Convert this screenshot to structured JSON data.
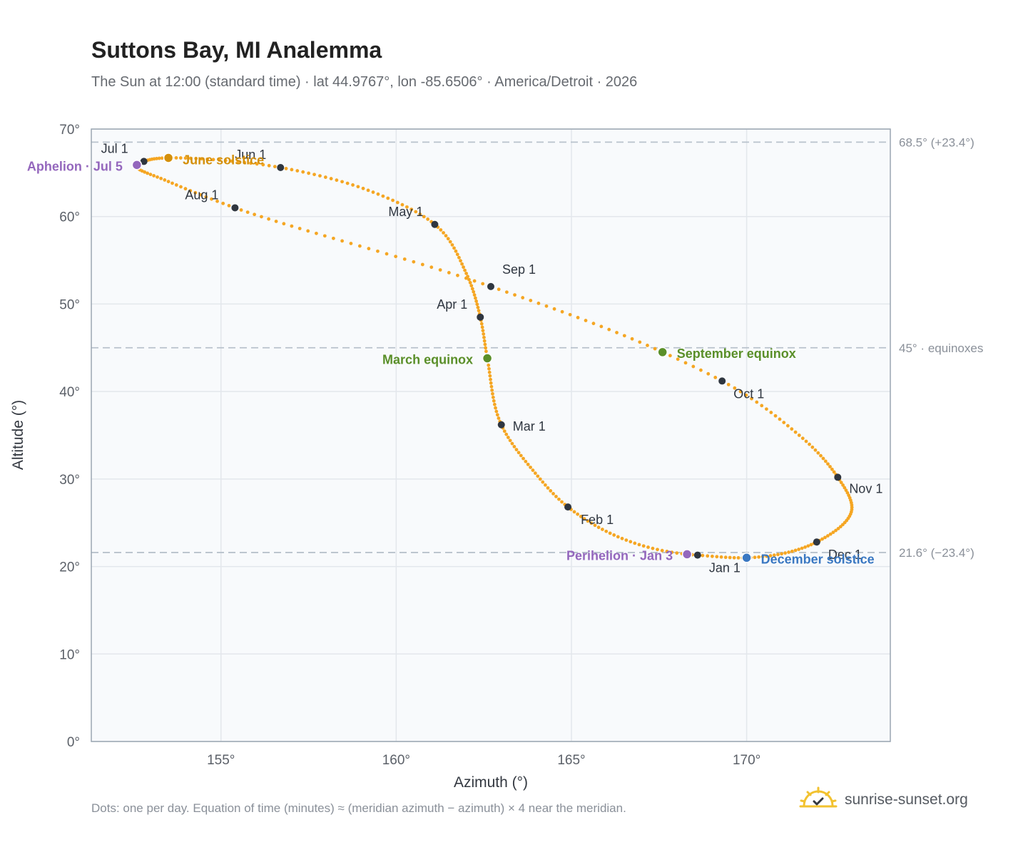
{
  "header": {
    "title": "Suttons Bay, MI Analemma",
    "subtitle": "The Sun at 12:00 (standard time) · lat 44.9767°, lon -85.6506° · America/Detroit · 2026"
  },
  "footer": {
    "note": "Dots: one per day. Equation of time (minutes) ≈ (meridian azimuth − azimuth) × 4 near the meridian.",
    "brand": "sunrise-sunset.org",
    "brand_icon": "sun-logo-icon"
  },
  "colors": {
    "path": "#f5a623",
    "month_marker": "#2f3640",
    "equinox": "#5a8f29",
    "june_solstice": "#d4900c",
    "december_solstice": "#3a78c2",
    "apsis": "#9467bd",
    "plot_bg": "#f8fafc",
    "grid": "#e3e7ec",
    "ref_line": "#b8c2cc"
  },
  "chart_data": {
    "type": "scatter",
    "title": "Suttons Bay, MI Analemma",
    "xlabel": "Azimuth (°)",
    "ylabel": "Altitude (°)",
    "xlim": [
      151.3,
      174.1
    ],
    "ylim": [
      0,
      70
    ],
    "xticks": [
      155,
      160,
      165,
      170
    ],
    "xtick_labels": [
      "155°",
      "160°",
      "165°",
      "170°"
    ],
    "yticks": [
      0,
      10,
      20,
      30,
      40,
      50,
      60,
      70
    ],
    "ytick_labels": [
      "0°",
      "10°",
      "20°",
      "30°",
      "40°",
      "50°",
      "60°",
      "70°"
    ],
    "grid": true,
    "reference_lines": [
      {
        "y": 68.5,
        "label": "68.5° (+23.4°)"
      },
      {
        "y": 45.0,
        "label": "45° · equinoxes"
      },
      {
        "y": 21.6,
        "label": "21.6° (−23.4°)"
      }
    ],
    "month_markers": [
      {
        "label": "Jan 1",
        "day": 1,
        "azimuth": 168.6,
        "altitude": 21.3
      },
      {
        "label": "Feb 1",
        "day": 32,
        "azimuth": 164.9,
        "altitude": 26.8
      },
      {
        "label": "Mar 1",
        "day": 60,
        "azimuth": 163.0,
        "altitude": 36.2
      },
      {
        "label": "Apr 1",
        "day": 91,
        "azimuth": 162.4,
        "altitude": 48.5
      },
      {
        "label": "May 1",
        "day": 121,
        "azimuth": 161.1,
        "altitude": 59.1
      },
      {
        "label": "Jun 1",
        "day": 152,
        "azimuth": 156.7,
        "altitude": 65.6
      },
      {
        "label": "Jul 1",
        "day": 182,
        "azimuth": 152.8,
        "altitude": 66.3
      },
      {
        "label": "Aug 1",
        "day": 213,
        "azimuth": 155.4,
        "altitude": 61.0
      },
      {
        "label": "Sep 1",
        "day": 244,
        "azimuth": 162.7,
        "altitude": 52.0
      },
      {
        "label": "Oct 1",
        "day": 274,
        "azimuth": 169.3,
        "altitude": 41.2
      },
      {
        "label": "Nov 1",
        "day": 305,
        "azimuth": 172.6,
        "altitude": 30.2
      },
      {
        "label": "Dec 1",
        "day": 335,
        "azimuth": 172.0,
        "altitude": 22.8
      }
    ],
    "events": [
      {
        "label": "March equinox",
        "day": 79,
        "azimuth": 162.6,
        "altitude": 43.8,
        "color": "#5a8f29"
      },
      {
        "label": "June solstice",
        "day": 172,
        "azimuth": 153.5,
        "altitude": 66.7,
        "color": "#d4900c"
      },
      {
        "label": "Aphelion · Jul 5",
        "day": 186,
        "azimuth": 152.6,
        "altitude": 65.9,
        "color": "#9467bd"
      },
      {
        "label": "September equinox",
        "day": 266,
        "azimuth": 167.6,
        "altitude": 44.5,
        "color": "#5a8f29"
      },
      {
        "label": "December solstice",
        "day": 355,
        "azimuth": 170.0,
        "altitude": 21.0,
        "color": "#3a78c2"
      },
      {
        "label": "Perihelion · Jan 3",
        "day": 3,
        "azimuth": 168.3,
        "altitude": 21.4,
        "color": "#9467bd"
      }
    ]
  }
}
